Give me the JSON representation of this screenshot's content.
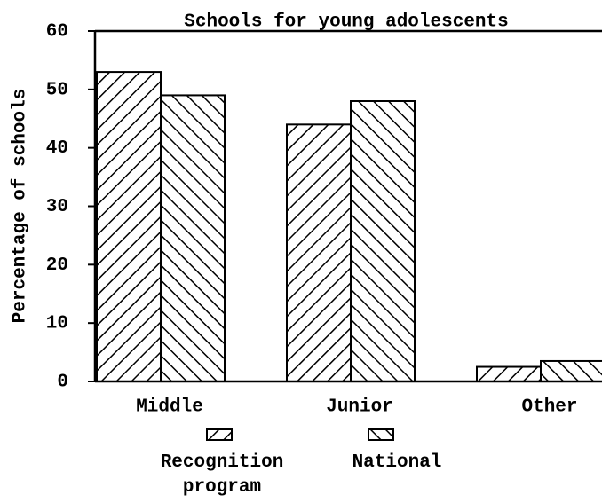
{
  "chart_data": {
    "type": "bar",
    "title": "Schools for young adolescents",
    "y_label": "Percentage of schools",
    "categories": [
      "Middle",
      "Junior",
      "Other"
    ],
    "series": [
      {
        "name": "Recognition program",
        "color": "#000000",
        "hatch": "/",
        "values": [
          53,
          44,
          2.5
        ]
      },
      {
        "name": "National",
        "color": "#000000",
        "hatch": "\\",
        "values": [
          49,
          48,
          3.5
        ]
      }
    ],
    "ylim": [
      0,
      60
    ],
    "yticks": [
      0,
      10,
      20,
      30,
      40,
      50,
      60
    ],
    "grid": false
  }
}
